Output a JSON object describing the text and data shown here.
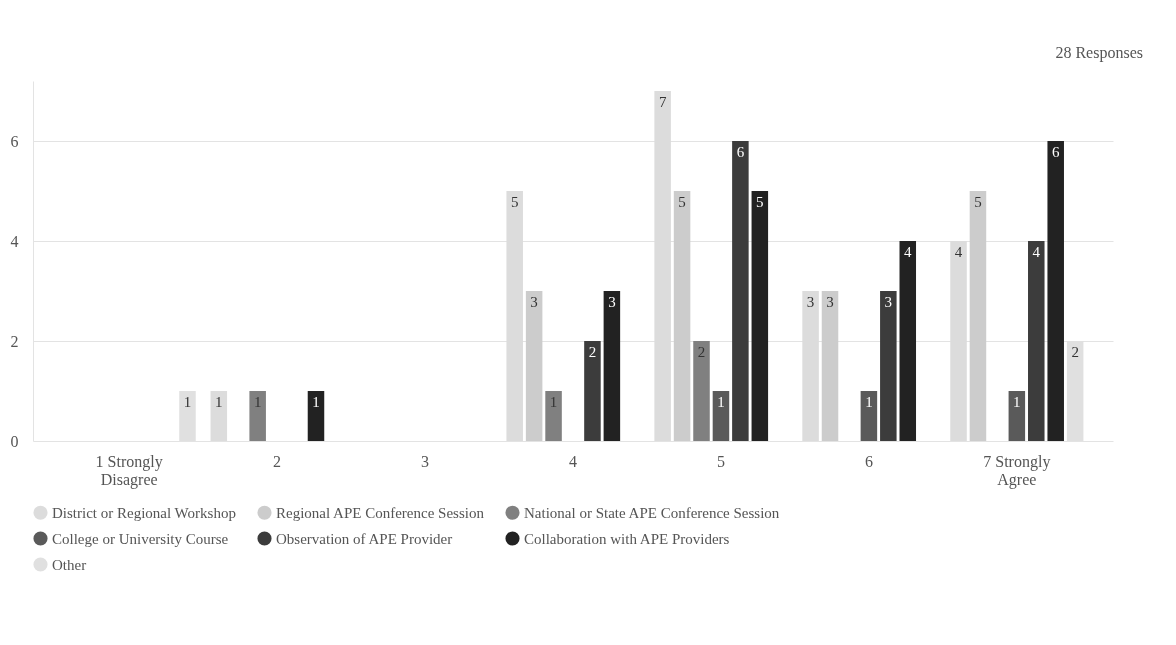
{
  "chart_data": {
    "type": "bar",
    "categories": [
      "1 Strongly Disagree",
      "2",
      "3",
      "4",
      "5",
      "6",
      "7 Strongly Agree"
    ],
    "series": [
      {
        "name": "District or Regional Workshop",
        "color": "#dcdcdc",
        "values": [
          0,
          1,
          0,
          5,
          7,
          3,
          4
        ],
        "value_labels": [
          null,
          "1",
          null,
          "5",
          "7",
          "3",
          "4"
        ]
      },
      {
        "name": "Regional APE Conference Session",
        "color": "#cccccc",
        "values": [
          0,
          0,
          0,
          3,
          5,
          3,
          5
        ],
        "value_labels": [
          null,
          null,
          null,
          "3",
          "5",
          "3",
          "5"
        ]
      },
      {
        "name": "National or State APE Conference Session",
        "color": "#808080",
        "values": [
          0,
          1,
          0,
          1,
          2,
          0,
          0
        ],
        "value_labels": [
          null,
          "1",
          null,
          "1",
          "2",
          null,
          null
        ]
      },
      {
        "name": "College or University Course",
        "color": "#5a5a5a",
        "values": [
          0,
          0,
          0,
          0,
          1,
          1,
          1
        ],
        "value_labels": [
          null,
          null,
          null,
          null,
          "1",
          "1",
          "1"
        ]
      },
      {
        "name": "Observation of APE Provider",
        "color": "#3c3c3c",
        "values": [
          0,
          0,
          0,
          2,
          6,
          3,
          4
        ],
        "value_labels": [
          null,
          null,
          null,
          "2",
          "6",
          "3",
          "4"
        ]
      },
      {
        "name": "Collaboration with APE Providers",
        "color": "#222222",
        "values": [
          0,
          1,
          0,
          3,
          5,
          4,
          6
        ],
        "value_labels": [
          null,
          "1",
          null,
          "3",
          "5",
          "4",
          "6"
        ]
      },
      {
        "name": "Other",
        "color": "#e0e0e0",
        "values": [
          1,
          0,
          0,
          0,
          0,
          0,
          2
        ],
        "value_labels": [
          "1",
          null,
          null,
          null,
          null,
          null,
          "2"
        ]
      }
    ],
    "ylim": [
      0,
      7.2
    ],
    "yticks": [
      0,
      2,
      4,
      6
    ],
    "grid": "y",
    "legend": "bottom",
    "annotations": [
      "28 Responses"
    ]
  }
}
